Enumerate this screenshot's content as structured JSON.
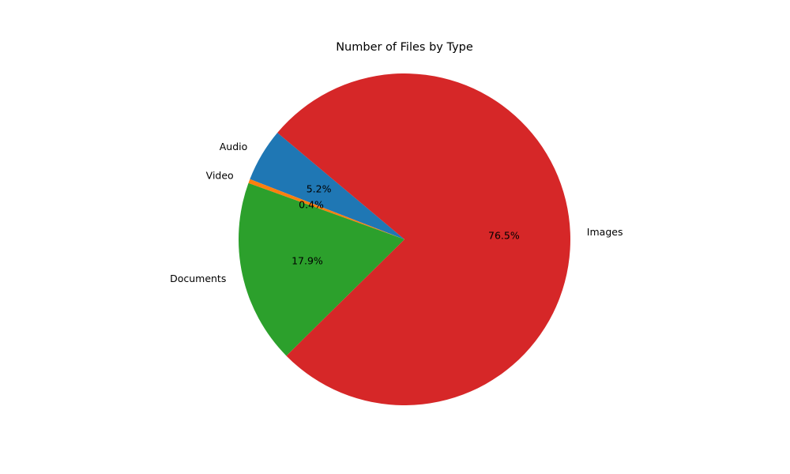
{
  "chart_data": {
    "type": "pie",
    "title": "Number of Files by Type",
    "categories": [
      "Audio",
      "Video",
      "Documents",
      "Images"
    ],
    "values": [
      5.2,
      0.4,
      17.9,
      76.5
    ],
    "value_labels": [
      "5.2%",
      "0.4%",
      "17.9%",
      "76.5%"
    ],
    "colors": [
      "#1f77b4",
      "#ff7f0e",
      "#2ca02c",
      "#d62728"
    ],
    "start_angle_deg": 140,
    "direction": "counterclockwise",
    "legend": "none"
  }
}
